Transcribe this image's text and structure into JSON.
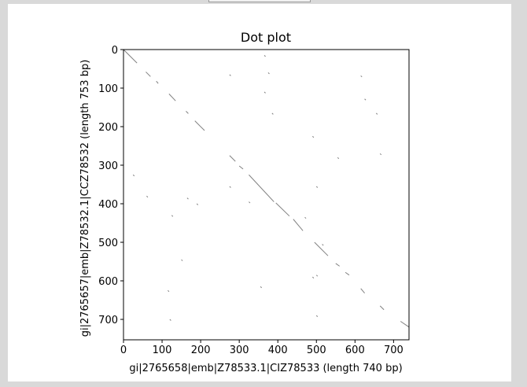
{
  "window": {
    "background": "#d9d9d9",
    "canvas_background": "#ffffff"
  },
  "chart_data": {
    "type": "scatter",
    "title": "Dot plot",
    "xlabel": "gi|2765658|emb|Z78533.1|CIZ78533 (length 740 bp)",
    "ylabel": "gi|2765657|emb|Z78532.1|CCZ78532 (length 753 bp)",
    "xlim": [
      0,
      740
    ],
    "ylim": [
      753,
      0
    ],
    "y_inverted": true,
    "grid": false,
    "x_ticks": [
      0,
      100,
      200,
      300,
      400,
      500,
      600,
      700
    ],
    "y_ticks": [
      0,
      100,
      200,
      300,
      400,
      500,
      600,
      700
    ],
    "x_tick_labels": [
      "0",
      "100",
      "200",
      "300",
      "400",
      "500",
      "600",
      "700"
    ],
    "y_tick_labels": [
      "0",
      "100",
      "200",
      "300",
      "400",
      "500",
      "600",
      "700"
    ],
    "mark_color": "#808080",
    "diagonal_segments": [
      {
        "x0": 0,
        "y0": 0,
        "x1": 35,
        "y1": 35
      },
      {
        "x0": 58,
        "y0": 58,
        "x1": 70,
        "y1": 70
      },
      {
        "x0": 85,
        "y0": 82,
        "x1": 90,
        "y1": 88
      },
      {
        "x0": 118,
        "y0": 115,
        "x1": 135,
        "y1": 133
      },
      {
        "x0": 162,
        "y0": 160,
        "x1": 168,
        "y1": 166
      },
      {
        "x0": 185,
        "y0": 185,
        "x1": 210,
        "y1": 210
      },
      {
        "x0": 275,
        "y0": 275,
        "x1": 290,
        "y1": 290
      },
      {
        "x0": 300,
        "y0": 302,
        "x1": 310,
        "y1": 310
      },
      {
        "x0": 325,
        "y0": 325,
        "x1": 390,
        "y1": 395
      },
      {
        "x0": 395,
        "y0": 398,
        "x1": 430,
        "y1": 432
      },
      {
        "x0": 440,
        "y0": 440,
        "x1": 465,
        "y1": 470
      },
      {
        "x0": 495,
        "y0": 500,
        "x1": 530,
        "y1": 535
      },
      {
        "x0": 550,
        "y0": 555,
        "x1": 560,
        "y1": 562
      },
      {
        "x0": 575,
        "y0": 578,
        "x1": 585,
        "y1": 585
      },
      {
        "x0": 615,
        "y0": 620,
        "x1": 625,
        "y1": 632
      },
      {
        "x0": 665,
        "y0": 665,
        "x1": 675,
        "y1": 675
      },
      {
        "x0": 718,
        "y0": 705,
        "x1": 740,
        "y1": 720
      }
    ],
    "points": [
      {
        "x": 365,
        "y": 15
      },
      {
        "x": 375,
        "y": 60
      },
      {
        "x": 275,
        "y": 65
      },
      {
        "x": 615,
        "y": 68
      },
      {
        "x": 625,
        "y": 128
      },
      {
        "x": 365,
        "y": 110
      },
      {
        "x": 385,
        "y": 165
      },
      {
        "x": 655,
        "y": 165
      },
      {
        "x": 490,
        "y": 225
      },
      {
        "x": 555,
        "y": 280
      },
      {
        "x": 665,
        "y": 270
      },
      {
        "x": 25,
        "y": 325
      },
      {
        "x": 275,
        "y": 355
      },
      {
        "x": 500,
        "y": 355
      },
      {
        "x": 60,
        "y": 380
      },
      {
        "x": 165,
        "y": 385
      },
      {
        "x": 190,
        "y": 400
      },
      {
        "x": 325,
        "y": 395
      },
      {
        "x": 125,
        "y": 430
      },
      {
        "x": 470,
        "y": 435
      },
      {
        "x": 515,
        "y": 505
      },
      {
        "x": 150,
        "y": 545
      },
      {
        "x": 490,
        "y": 590
      },
      {
        "x": 500,
        "y": 585
      },
      {
        "x": 355,
        "y": 615
      },
      {
        "x": 115,
        "y": 625
      },
      {
        "x": 500,
        "y": 690
      },
      {
        "x": 120,
        "y": 700
      }
    ]
  }
}
